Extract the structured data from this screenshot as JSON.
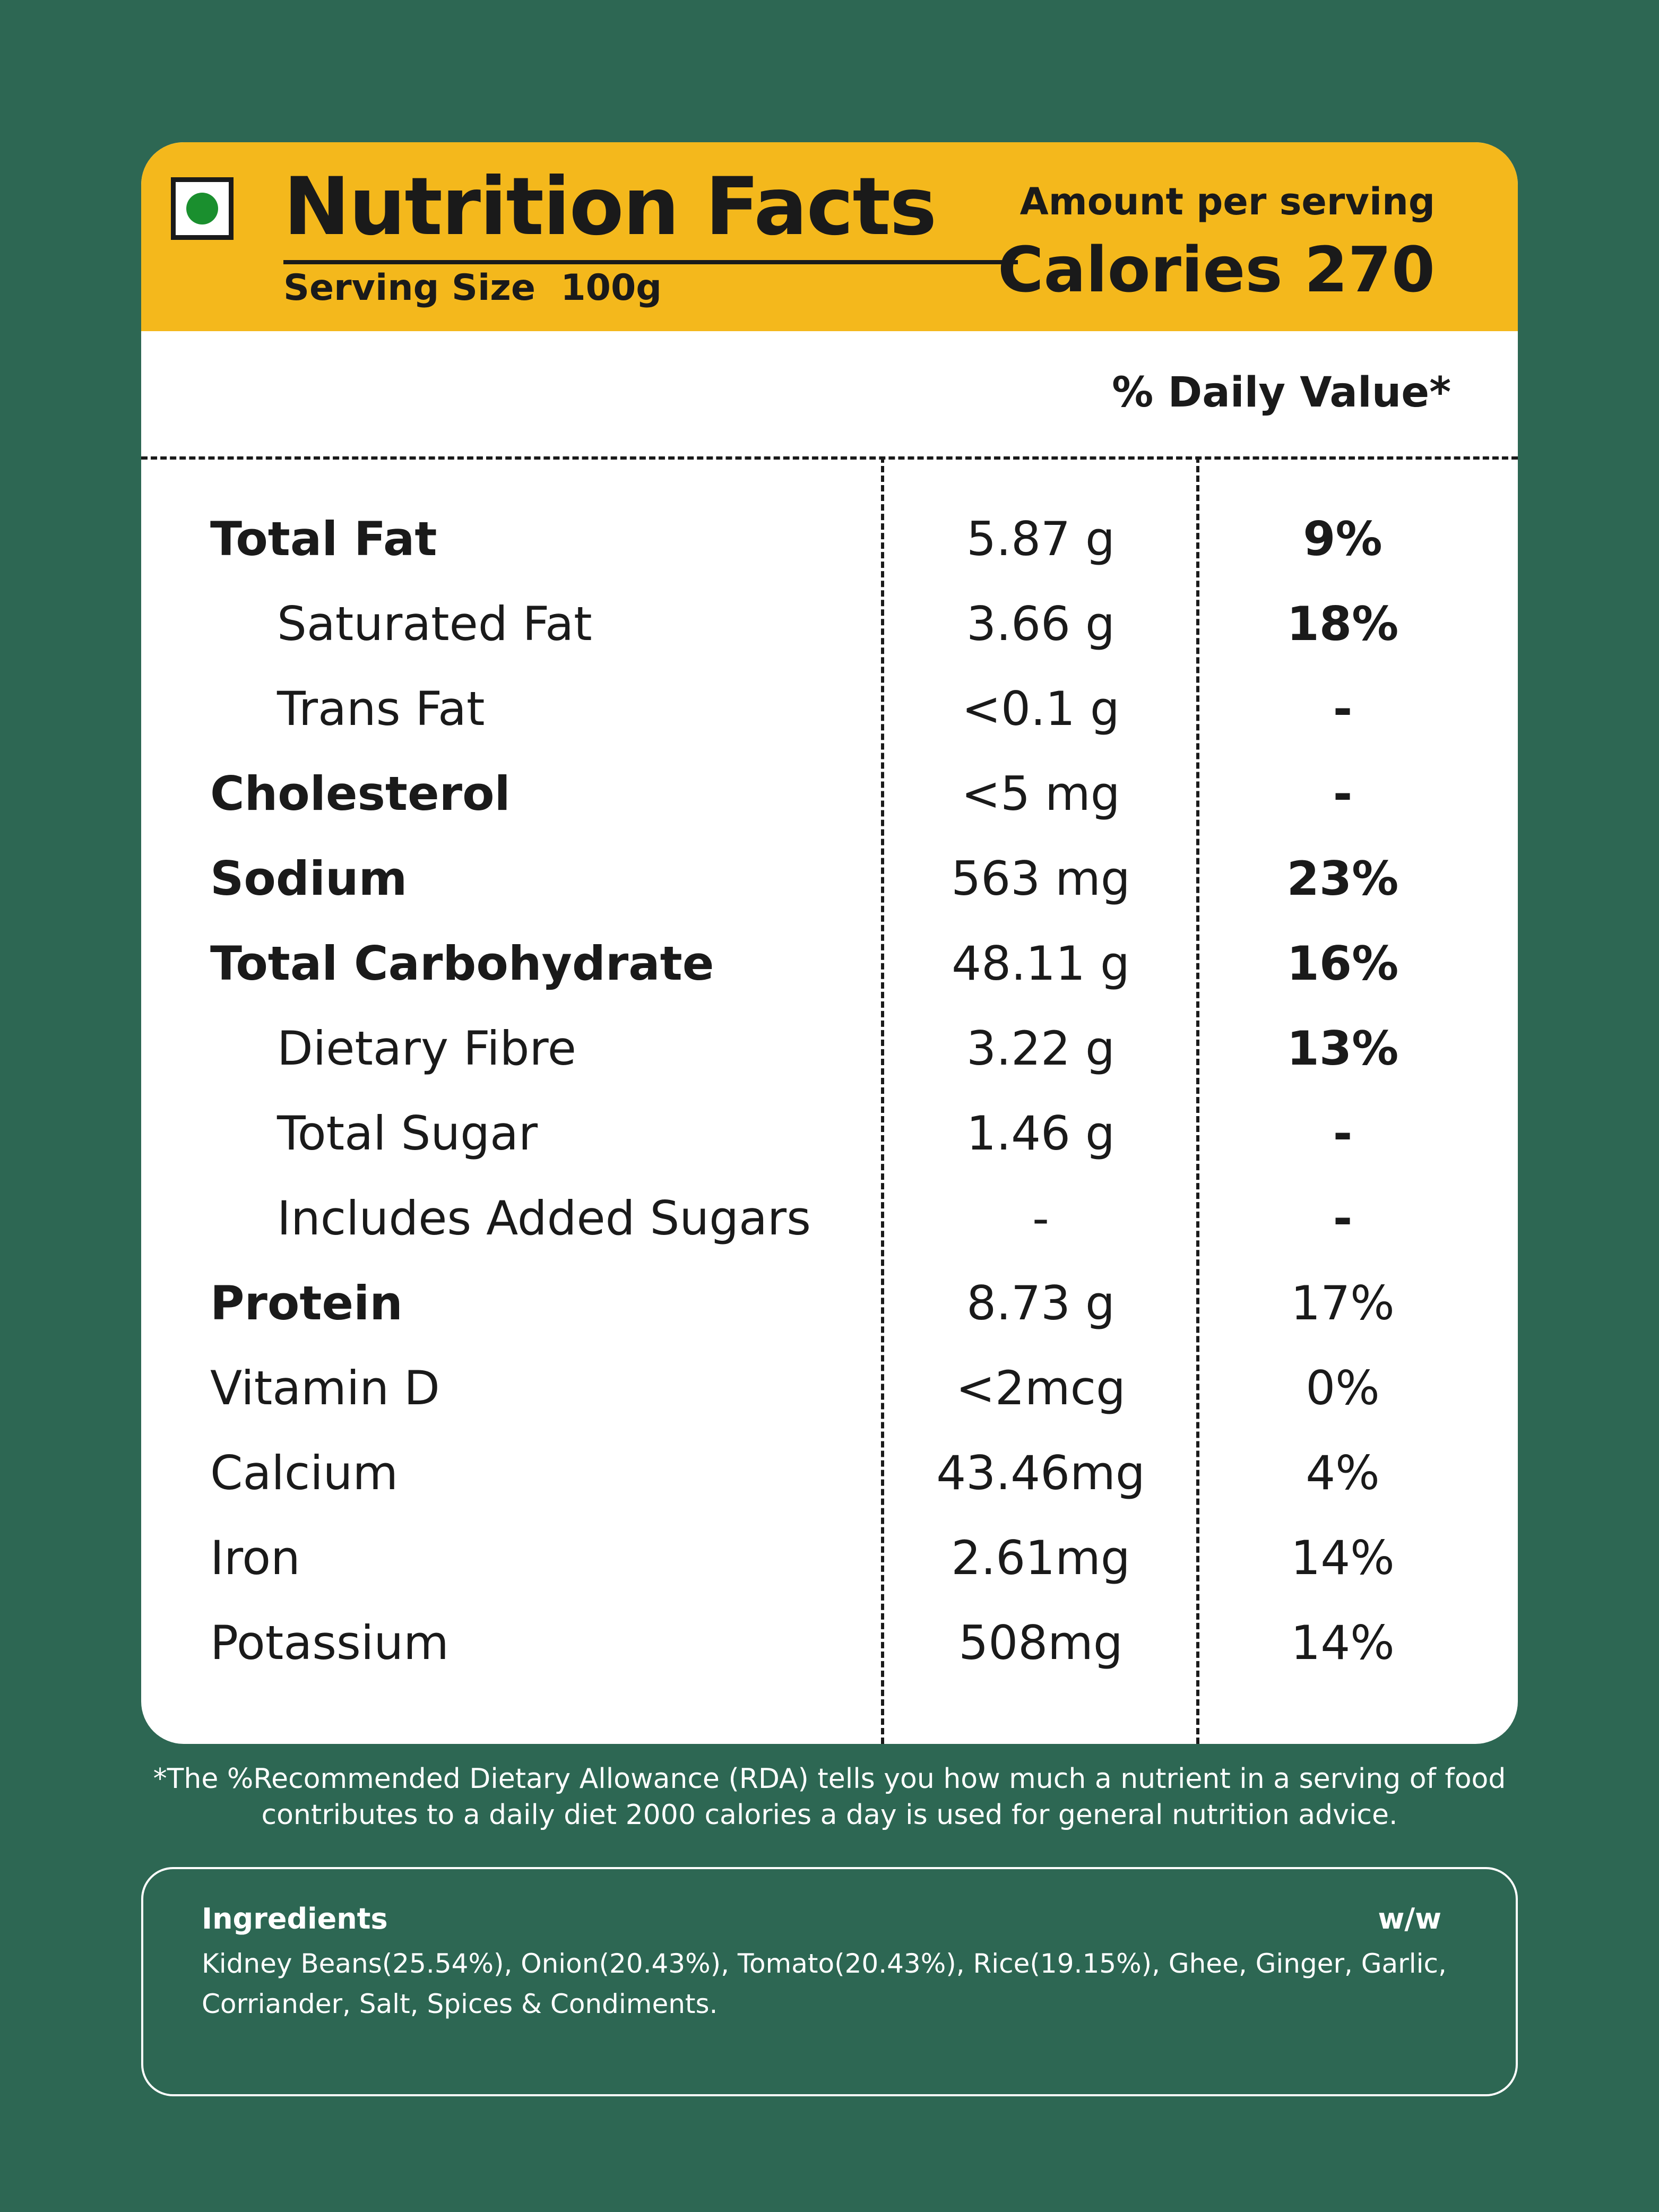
{
  "header": {
    "title": "Nutrition Facts",
    "serving_size": "Serving Size  100g",
    "amount_label": "Amount per serving",
    "calories": "Calories 270"
  },
  "dv_header": "% Daily Value*",
  "rows": [
    {
      "name": "Total Fat",
      "amount": "5.87 g",
      "dv": "9%"
    },
    {
      "name": "Saturated Fat",
      "amount": "3.66 g",
      "dv": "18%"
    },
    {
      "name": "Trans Fat",
      "amount": "<0.1 g",
      "dv": "-"
    },
    {
      "name": "Cholesterol",
      "amount": "<5 mg",
      "dv": "-"
    },
    {
      "name": "Sodium",
      "amount": "563 mg",
      "dv": "23%"
    },
    {
      "name": "Total Carbohydrate",
      "amount": "48.11 g",
      "dv": "16%"
    },
    {
      "name": "Dietary Fibre",
      "amount": "3.22 g",
      "dv": "13%"
    },
    {
      "name": "Total Sugar",
      "amount": "1.46 g",
      "dv": "-"
    },
    {
      "name": "Includes Added Sugars",
      "amount": "-",
      "dv": "-"
    },
    {
      "name": "Protein",
      "amount": "8.73 g",
      "dv": "17%"
    },
    {
      "name": "Vitamin D",
      "amount": "<2mcg",
      "dv": "0%"
    },
    {
      "name": "Calcium",
      "amount": "43.46mg",
      "dv": "4%"
    },
    {
      "name": "Iron",
      "amount": "2.61mg",
      "dv": "14%"
    },
    {
      "name": "Potassium",
      "amount": "508mg",
      "dv": "14%"
    }
  ],
  "footnote": {
    "line1": "*The %Recommended Dietary Allowance (RDA) tells you how much a nutrient in a serving of food",
    "line2": "contributes to a daily diet 2000 calories a day is used for general nutrition advice."
  },
  "ingredients": {
    "title": "Ingredients",
    "unit": "w/w",
    "line1": "Kidney Beans(25.54%), Onion(20.43%), Tomato(20.43%), Rice(19.15%), Ghee, Ginger, Garlic,",
    "line2": "Corriander, Salt, Spices & Condiments."
  },
  "colors": {
    "background": "#2d6753",
    "header": "#f4b81c",
    "veg_dot": "#1a8f2e"
  }
}
